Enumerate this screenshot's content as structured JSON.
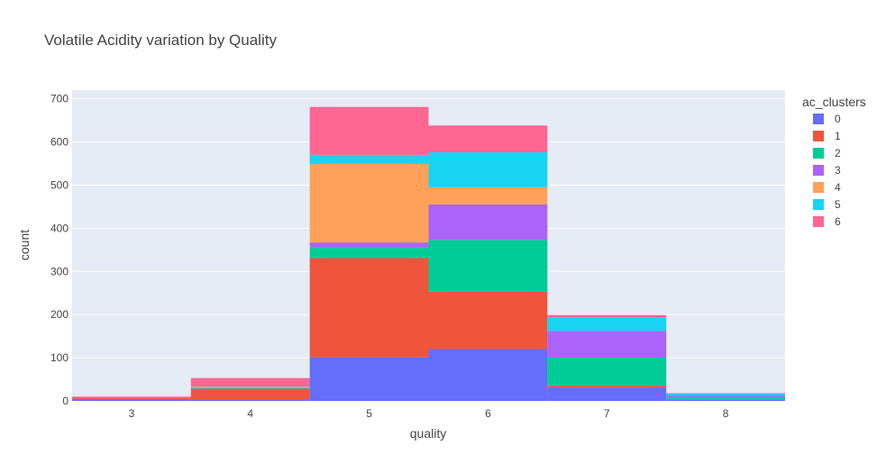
{
  "chart_data": {
    "type": "bar",
    "title": "Volatile Acidity variation by Quality",
    "xlabel": "quality",
    "ylabel": "count",
    "categories": [
      "3",
      "4",
      "5",
      "6",
      "7",
      "8"
    ],
    "ylim": [
      0,
      720
    ],
    "yticks": [
      "0",
      "100",
      "200",
      "300",
      "400",
      "500",
      "600",
      "700"
    ],
    "grid": true,
    "legend": {
      "title": "ac_clusters",
      "placement": "right"
    },
    "series": [
      {
        "name": "0",
        "color": "#636efa",
        "values": [
          3,
          3,
          101,
          120,
          32,
          3
        ]
      },
      {
        "name": "1",
        "color": "#ef553b",
        "values": [
          4,
          25,
          230,
          133,
          4,
          1
        ]
      },
      {
        "name": "2",
        "color": "#00cc96",
        "values": [
          0,
          2,
          24,
          120,
          64,
          5
        ]
      },
      {
        "name": "3",
        "color": "#ab63fa",
        "values": [
          0,
          1,
          12,
          82,
          62,
          5
        ]
      },
      {
        "name": "4",
        "color": "#ffa15a",
        "values": [
          0,
          1,
          182,
          40,
          0,
          0
        ]
      },
      {
        "name": "5",
        "color": "#19d3f3",
        "values": [
          0,
          1,
          21,
          81,
          32,
          3
        ]
      },
      {
        "name": "6",
        "color": "#ff6692",
        "values": [
          3,
          20,
          111,
          62,
          5,
          1
        ]
      }
    ]
  }
}
